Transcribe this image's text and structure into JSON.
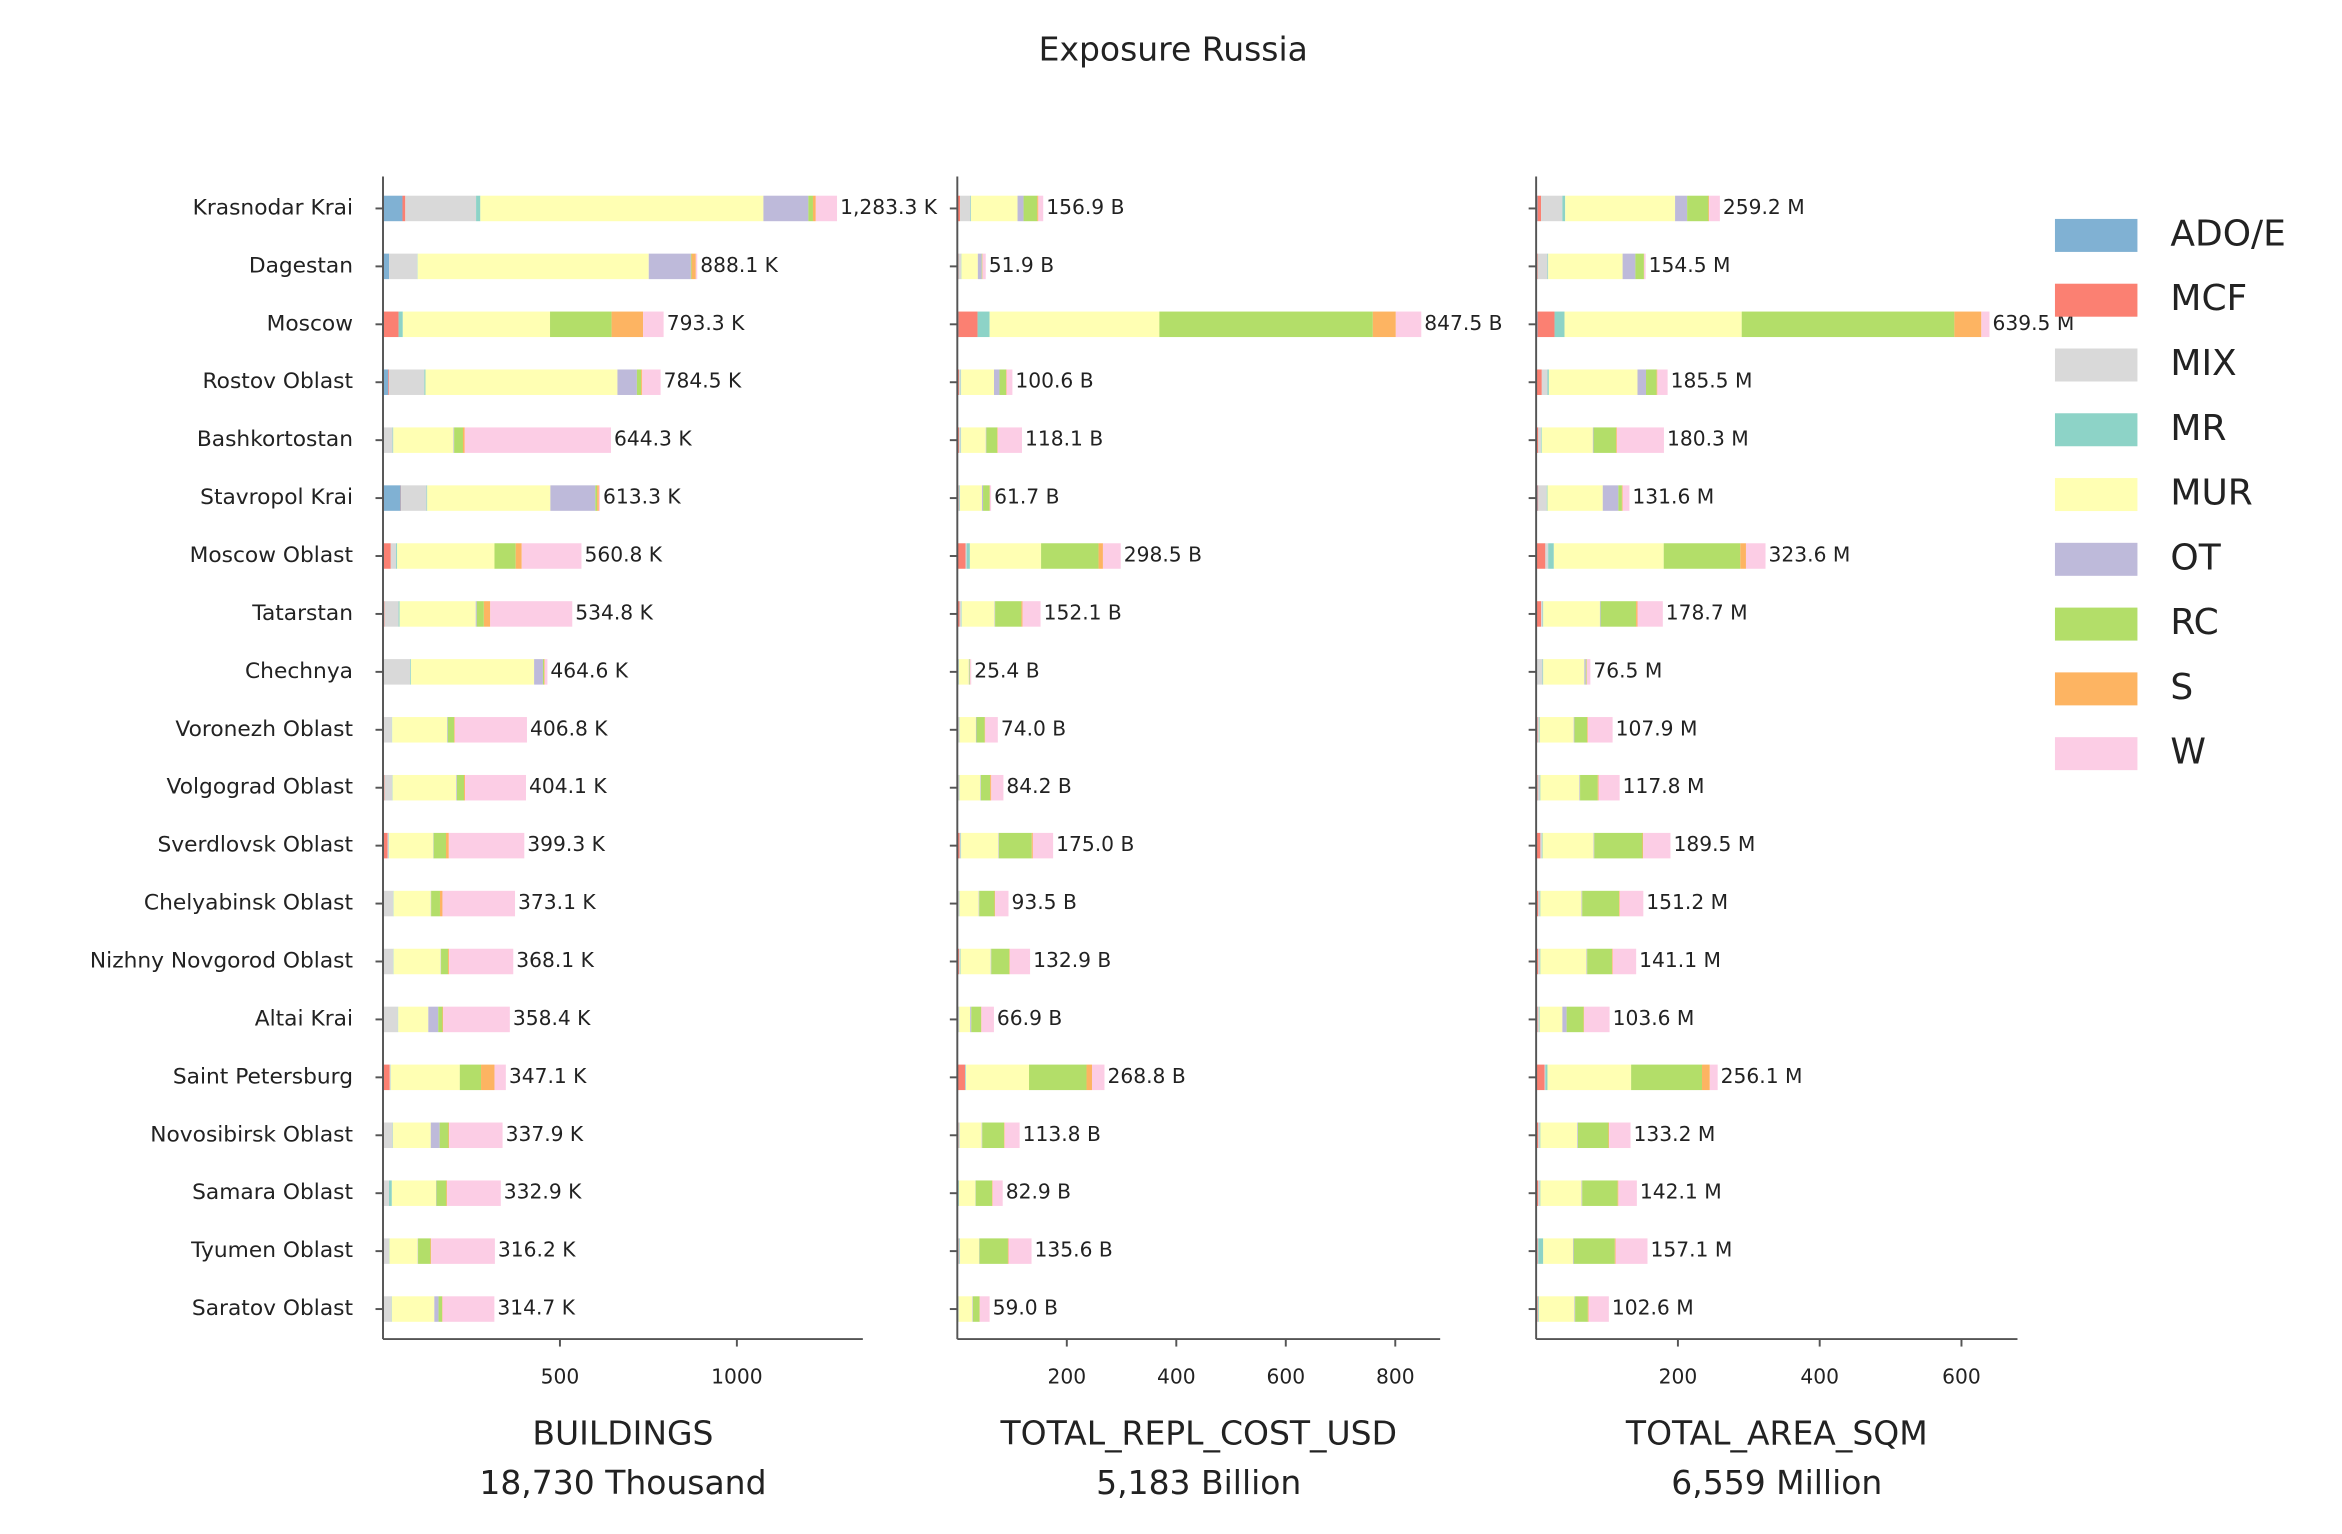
{
  "title": "Exposure Russia",
  "chart_data": [
    {
      "type": "bar",
      "orientation": "horizontal",
      "xlabel": "BUILDINGS",
      "xlabel_total": "18,730 Thousand",
      "xlim": [
        0,
        1356
      ],
      "xticks": [
        500,
        1000
      ],
      "categories": [
        "Krasnodar Krai",
        "Dagestan",
        "Moscow",
        "Rostov Oblast",
        "Bashkortostan",
        "Stavropol Krai",
        "Moscow Oblast",
        "Tatarstan",
        "Chechnya",
        "Voronezh Oblast",
        "Volgograd Oblast",
        "Sverdlovsk Oblast",
        "Chelyabinsk Oblast",
        "Nizhny Novgorod Oblast",
        "Altai Krai",
        "Saint Petersburg",
        "Novosibirsk Oblast",
        "Samara Oblast",
        "Tyumen Oblast",
        "Saratov Oblast"
      ],
      "series": [
        {
          "name": "ADO/E",
          "color": "#80b1d3",
          "values": [
            55,
            17,
            2,
            15,
            1,
            50,
            2,
            2,
            1,
            1,
            1,
            1,
            1,
            1,
            1,
            1,
            1,
            1,
            1,
            1
          ]
        },
        {
          "name": "MCF",
          "color": "#fb8072",
          "values": [
            8,
            0,
            42,
            2,
            1,
            1,
            20,
            2,
            0,
            2,
            3,
            12,
            1,
            1,
            1,
            18,
            2,
            1,
            1,
            1
          ]
        },
        {
          "name": "MIX",
          "color": "#d9d9d9",
          "values": [
            200,
            80,
            0,
            100,
            25,
            72,
            15,
            40,
            76,
            22,
            22,
            3,
            27,
            27,
            40,
            2,
            24,
            15,
            15,
            22
          ]
        },
        {
          "name": "MR",
          "color": "#8dd3c7",
          "values": [
            12,
            1,
            12,
            3,
            2,
            2,
            3,
            3,
            2,
            1,
            1,
            1,
            1,
            1,
            1,
            1,
            1,
            8,
            1,
            1
          ]
        },
        {
          "name": "MUR",
          "color": "#ffffb3",
          "values": [
            800,
            653,
            416,
            542.5,
            170,
            348,
            275,
            215,
            348,
            155,
            180,
            125,
            105,
            133,
            85,
            195,
            107,
            125,
            80,
            120
          ]
        },
        {
          "name": "OT",
          "color": "#bebada",
          "values": [
            127,
            119,
            0,
            55,
            2,
            127,
            0,
            3,
            25,
            2,
            2,
            1,
            1,
            1,
            28,
            0,
            25,
            1,
            1,
            12
          ]
        },
        {
          "name": "RC",
          "color": "#b3de69",
          "values": [
            13,
            2,
            174,
            12,
            25,
            5,
            60,
            20,
            3,
            18,
            20,
            35,
            25,
            20,
            12,
            60,
            25,
            28,
            35,
            10
          ]
        },
        {
          "name": "S",
          "color": "#fdb462",
          "values": [
            8,
            12,
            89,
            3,
            5,
            5,
            17,
            18,
            2,
            2,
            3,
            8,
            7,
            3,
            2,
            38,
            2,
            2,
            2,
            1
          ]
        },
        {
          "name": "W",
          "color": "#fccde5",
          "values": [
            60,
            4,
            58,
            52,
            413.3,
            3.3,
            168.8,
            231.8,
            7.6,
            203.8,
            172.1,
            213.3,
            205.1,
            181.1,
            188.4,
            32.1,
            150.9,
            151.9,
            180.2,
            146.7
          ]
        }
      ],
      "totals": [
        1283.3,
        888.1,
        793.3,
        784.5,
        644.3,
        613.3,
        560.8,
        534.8,
        464.6,
        406.8,
        404.1,
        399.3,
        373.1,
        368.1,
        358.4,
        347.1,
        337.9,
        332.9,
        316.2,
        314.7
      ],
      "total_labels": [
        "1,283.3 K",
        "888.1 K",
        "793.3 K",
        "784.5 K",
        "644.3 K",
        "613.3 K",
        "560.8 K",
        "534.8 K",
        "464.6 K",
        "406.8 K",
        "404.1 K",
        "399.3 K",
        "373.1 K",
        "368.1 K",
        "358.4 K",
        "347.1 K",
        "337.9 K",
        "332.9 K",
        "316.2 K",
        "314.7 K"
      ]
    },
    {
      "type": "bar",
      "orientation": "horizontal",
      "xlabel": "TOTAL_REPL_COST_USD",
      "xlabel_total": "5,183 Billion",
      "xlim": [
        0,
        882
      ],
      "xticks": [
        200,
        400,
        600,
        800
      ],
      "series": [
        {
          "color": "#80b1d3",
          "values": [
            1,
            1,
            2,
            1,
            1,
            1,
            1,
            1,
            0.5,
            0.5,
            0.5,
            1,
            0.5,
            1,
            0.5,
            1,
            0.5,
            0.5,
            0.5,
            0.5
          ]
        },
        {
          "color": "#fb8072",
          "values": [
            4,
            1,
            35,
            2,
            2,
            1,
            14,
            3,
            0,
            1,
            1,
            3,
            1,
            2,
            0.5,
            13,
            1.5,
            0.5,
            1.5,
            0.5
          ]
        },
        {
          "color": "#d9d9d9",
          "values": [
            19,
            5,
            0,
            3,
            3,
            2,
            2,
            3,
            2,
            2,
            2,
            2,
            2,
            2,
            2,
            1,
            2,
            1,
            2,
            1
          ]
        },
        {
          "color": "#8dd3c7",
          "values": [
            1,
            0.5,
            22,
            1,
            1,
            1,
            6,
            1,
            0.5,
            0.5,
            0.5,
            1,
            0.5,
            1,
            0.5,
            1,
            0.5,
            1,
            1,
            0.5
          ]
        },
        {
          "color": "#ffffb3",
          "values": [
            85,
            30,
            310,
            60,
            45,
            40,
            130,
            60,
            18,
            30,
            38,
            68,
            35,
            55,
            20,
            115,
            40,
            30,
            35,
            25
          ]
        },
        {
          "color": "#bebada",
          "values": [
            11,
            7,
            0,
            10,
            1,
            2,
            0,
            1,
            1,
            1,
            1,
            1,
            1,
            1,
            2,
            0,
            1,
            0.5,
            0.5,
            1
          ]
        },
        {
          "color": "#b3de69",
          "values": [
            25,
            1,
            390,
            12,
            20,
            12,
            105,
            48,
            1,
            15,
            17,
            60,
            28,
            33,
            18,
            105,
            40,
            30,
            52,
            12
          ]
        },
        {
          "color": "#fdb462",
          "values": [
            2,
            0.5,
            42,
            1,
            1,
            0.5,
            8,
            2,
            0.5,
            1,
            2,
            2,
            1,
            1,
            0.5,
            10,
            1,
            1,
            1,
            0.5
          ]
        },
        {
          "color": "#fccde5",
          "values": [
            8.9,
            5.9,
            46.5,
            10.6,
            44.1,
            2.2,
            32.5,
            33.1,
            1.9,
            23,
            22.2,
            37,
            24.5,
            36.9,
            22.9,
            22.8,
            27.3,
            18.4,
            42.1,
            18
          ]
        }
      ],
      "totals": [
        156.9,
        51.9,
        847.5,
        100.6,
        118.1,
        61.7,
        298.5,
        152.1,
        25.4,
        74.0,
        84.2,
        175.0,
        93.5,
        132.9,
        66.9,
        268.8,
        113.8,
        82.9,
        135.6,
        59.0
      ],
      "total_labels": [
        "156.9 B",
        "51.9 B",
        "847.5 B",
        "100.6 B",
        "118.1 B",
        "61.7 B",
        "298.5 B",
        "152.1 B",
        "25.4 B",
        "74.0 B",
        "84.2 B",
        "175.0 B",
        "93.5 B",
        "132.9 B",
        "66.9 B",
        "268.8 B",
        "113.8 B",
        "82.9 B",
        "135.6 B",
        "59.0 B"
      ]
    },
    {
      "type": "bar",
      "orientation": "horizontal",
      "xlabel": "TOTAL_AREA_SQM",
      "xlabel_total": "6,559 Million",
      "xlim": [
        0,
        679
      ],
      "xticks": [
        200,
        400,
        600
      ],
      "series": [
        {
          "color": "#80b1d3",
          "values": [
            2,
            1,
            2,
            1,
            1,
            2,
            1,
            1,
            1,
            1,
            0.5,
            1,
            1,
            1,
            1,
            1,
            1,
            1,
            1,
            1
          ]
        },
        {
          "color": "#fb8072",
          "values": [
            5,
            1,
            24,
            7,
            2,
            1,
            12,
            6,
            0,
            1,
            1.5,
            5,
            2,
            2,
            1,
            11,
            2,
            2,
            1,
            1
          ]
        },
        {
          "color": "#d9d9d9",
          "values": [
            30,
            14,
            0,
            8,
            4,
            12,
            4,
            2,
            8,
            2,
            3,
            2,
            2,
            2,
            2,
            1,
            2,
            2,
            1,
            1
          ]
        },
        {
          "color": "#8dd3c7",
          "values": [
            4,
            1,
            14,
            2,
            1,
            1,
            8,
            1,
            1,
            1,
            1,
            1,
            1,
            1,
            1,
            3,
            1,
            1,
            7,
            1
          ]
        },
        {
          "color": "#ffffb3",
          "values": [
            155,
            105,
            250,
            125,
            72,
            78,
            155,
            80,
            58,
            48,
            55,
            72,
            58,
            65,
            32,
            118,
            52,
            58,
            42,
            50
          ]
        },
        {
          "color": "#bebada",
          "values": [
            17,
            18,
            0,
            12,
            1,
            22,
            0,
            1,
            2,
            1,
            1,
            1,
            1,
            1,
            6,
            0,
            1,
            1,
            1,
            1
          ]
        },
        {
          "color": "#b3de69",
          "values": [
            30,
            12,
            300,
            15,
            32,
            5,
            108,
            50,
            1,
            18,
            25,
            68,
            52,
            35,
            24,
            100,
            43,
            50,
            58,
            18
          ]
        },
        {
          "color": "#fdb462",
          "values": [
            1,
            0.5,
            38,
            1,
            1,
            1,
            8,
            2,
            0.5,
            1,
            1,
            1,
            1,
            1,
            0.5,
            11,
            1,
            1,
            1,
            1
          ]
        },
        {
          "color": "#fccde5",
          "values": [
            15.2,
            2,
            11.5,
            14.5,
            66.3,
            9.6,
            27.6,
            35.7,
            5,
            34.9,
            29.8,
            38.5,
            33.2,
            33.1,
            36.1,
            11.1,
            30.2,
            26.1,
            45.1,
            28.6
          ]
        }
      ],
      "totals": [
        259.2,
        154.5,
        639.5,
        185.5,
        180.3,
        131.6,
        323.6,
        178.7,
        76.5,
        107.9,
        117.8,
        189.5,
        151.2,
        141.1,
        103.6,
        256.1,
        133.2,
        142.1,
        157.1,
        102.6
      ],
      "total_labels": [
        "259.2 M",
        "154.5 M",
        "639.5 M",
        "185.5 M",
        "180.3 M",
        "131.6 M",
        "323.6 M",
        "178.7 M",
        "76.5 M",
        "107.9 M",
        "117.8 M",
        "189.5 M",
        "151.2 M",
        "141.1 M",
        "103.6 M",
        "256.1 M",
        "133.2 M",
        "142.1 M",
        "157.1 M",
        "102.6 M"
      ]
    }
  ]
}
